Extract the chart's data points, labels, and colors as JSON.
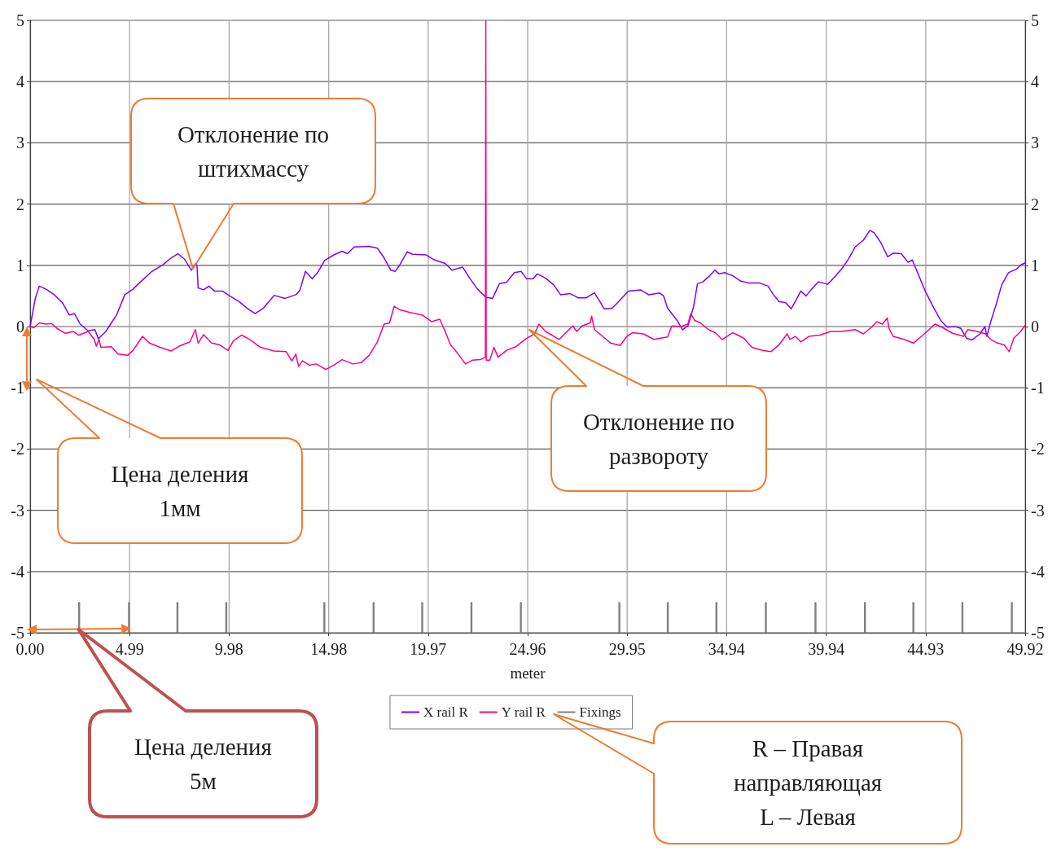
{
  "chart_data": {
    "type": "line",
    "xlabel": "meter",
    "xlim": [
      0,
      49.92
    ],
    "xticks": [
      {
        "value": 0,
        "label": "0.00"
      },
      4.99,
      9.98,
      14.98,
      19.97,
      24.96,
      29.95,
      34.94,
      39.94,
      44.93,
      49.92
    ],
    "ylim": [
      -5,
      5
    ],
    "yticks": [
      -5,
      -4,
      -3,
      -2,
      -1,
      0,
      1,
      2,
      3,
      4,
      5
    ],
    "y2lim": [
      -5,
      5
    ],
    "y2ticks": [
      -5,
      -4,
      -3,
      -2,
      -1,
      0,
      1,
      2,
      3,
      4,
      5
    ],
    "grid": true,
    "legend": "bottom",
    "marker": "none",
    "line_style": "solid",
    "series": [
      {
        "name": "X rail R",
        "color": "#8000ff",
        "x": [
          0,
          0.26,
          0.46,
          0.8,
          1.21,
          1.62,
          1.96,
          2.23,
          2.51,
          2.91,
          3.25,
          3.42,
          3.8,
          4.34,
          4.75,
          5.16,
          5.57,
          6.11,
          6.66,
          7.07,
          7.41,
          7.75,
          8.09,
          8.3,
          8.37,
          8.43,
          8.7,
          8.97,
          9.25,
          9.65,
          10.06,
          10.47,
          10.88,
          11.29,
          11.7,
          12.24,
          12.79,
          13.33,
          13.53,
          13.81,
          14.15,
          14.42,
          14.77,
          15.24,
          15.65,
          15.92,
          16.26,
          17.01,
          17.42,
          17.76,
          18.1,
          18.31,
          18.51,
          18.91,
          19.19,
          19.87,
          20.27,
          20.82,
          21.16,
          21.7,
          22.05,
          22.45,
          22.86,
          23.2,
          23.54,
          23.89,
          24.29,
          24.63,
          24.91,
          25.24,
          25.45,
          25.86,
          26.27,
          26.61,
          27.08,
          27.49,
          27.9,
          28.31,
          28.58,
          28.79,
          29.19,
          29.53,
          30.01,
          30.62,
          31.03,
          31.57,
          31.78,
          31.98,
          32.46,
          32.73,
          33.0,
          33.28,
          33.48,
          33.75,
          34.09,
          34.36,
          34.57,
          34.84,
          35.25,
          35.66,
          36.07,
          36.61,
          37.02,
          37.29,
          37.57,
          37.91,
          38.18,
          38.39,
          38.66,
          38.93,
          39.2,
          39.55,
          40.02,
          40.36,
          40.71,
          41.05,
          41.39,
          41.8,
          42.13,
          42.34,
          42.68,
          43.02,
          43.29,
          43.7,
          44.04,
          44.25,
          44.52,
          44.92,
          45.34,
          45.68,
          46.01,
          46.42,
          46.69,
          46.98,
          47.24,
          47.65,
          47.9,
          48.0,
          48.19,
          48.47,
          48.74,
          49.08,
          49.49,
          49.72,
          49.92
        ],
        "values": [
          0,
          0.46,
          0.66,
          0.61,
          0.52,
          0.39,
          0.19,
          0.21,
          0.04,
          -0.07,
          -0.05,
          -0.2,
          -0.08,
          0.19,
          0.52,
          0.61,
          0.74,
          0.9,
          1.01,
          1.12,
          1.19,
          1.1,
          0.92,
          1.03,
          1.0,
          0.63,
          0.6,
          0.66,
          0.58,
          0.58,
          0.49,
          0.41,
          0.3,
          0.21,
          0.3,
          0.51,
          0.46,
          0.52,
          0.59,
          0.9,
          0.78,
          0.88,
          1.08,
          1.17,
          1.23,
          1.19,
          1.3,
          1.31,
          1.28,
          1.12,
          0.92,
          0.9,
          0.99,
          1.22,
          1.18,
          1.17,
          1.09,
          1.03,
          0.92,
          0.97,
          0.79,
          0.61,
          0.48,
          0.46,
          0.7,
          0.72,
          0.88,
          0.9,
          0.78,
          0.78,
          0.86,
          0.79,
          0.68,
          0.52,
          0.54,
          0.47,
          0.47,
          0.55,
          0.41,
          0.29,
          0.3,
          0.41,
          0.58,
          0.6,
          0.52,
          0.55,
          0.5,
          0.3,
          0.1,
          -0.05,
          0.01,
          0.32,
          0.7,
          0.73,
          0.83,
          0.92,
          0.86,
          0.88,
          0.83,
          0.74,
          0.71,
          0.71,
          0.66,
          0.52,
          0.41,
          0.39,
          0.29,
          0.41,
          0.58,
          0.5,
          0.61,
          0.73,
          0.69,
          0.81,
          0.94,
          1.1,
          1.3,
          1.41,
          1.57,
          1.53,
          1.37,
          1.14,
          1.2,
          1.19,
          1.05,
          1.09,
          0.88,
          0.57,
          0.3,
          0.1,
          -0.01,
          0.0,
          -0.03,
          -0.19,
          -0.22,
          -0.12,
          0.0,
          -0.16,
          0.08,
          0.37,
          0.68,
          0.88,
          0.94,
          1.01,
          1.04
        ]
      },
      {
        "name": "Y rail R",
        "color": "#ff0080",
        "x": [
          0,
          0.19,
          0.46,
          0.8,
          1.08,
          1.35,
          1.76,
          2.17,
          2.44,
          2.91,
          3.22,
          3.32,
          3.46,
          3.55,
          4.07,
          4.41,
          4.89,
          5.16,
          5.64,
          5.98,
          6.52,
          7.07,
          7.48,
          8.02,
          8.29,
          8.43,
          8.7,
          9.11,
          9.51,
          9.93,
          10.2,
          10.61,
          11.02,
          11.56,
          12.24,
          12.85,
          13.13,
          13.33,
          13.47,
          13.67,
          14.01,
          14.35,
          14.83,
          15.24,
          15.65,
          16.19,
          16.61,
          17.01,
          17.42,
          17.76,
          18.03,
          18.26,
          18.51,
          19.05,
          19.66,
          20.14,
          20.55,
          20.82,
          21.09,
          21.43,
          21.84,
          22.18,
          22.59,
          22.84,
          22.86,
          22.88,
          23.06,
          23.27,
          23.47,
          23.89,
          24.36,
          24.91,
          25.31,
          25.52,
          25.86,
          26.54,
          26.88,
          27.22,
          27.42,
          27.69,
          28.1,
          28.17,
          28.31,
          28.72,
          29.12,
          29.6,
          29.94,
          30.21,
          30.76,
          31.3,
          31.98,
          32.19,
          32.66,
          33.0,
          33.14,
          33.34,
          33.62,
          34.03,
          34.37,
          34.71,
          35.25,
          35.8,
          36.21,
          36.75,
          37.16,
          37.57,
          37.98,
          38.12,
          38.39,
          38.66,
          39.07,
          39.62,
          40.16,
          40.71,
          41.39,
          41.8,
          42.21,
          42.48,
          42.75,
          43.0,
          43.09,
          43.29,
          43.84,
          44.31,
          44.79,
          45.4,
          45.74,
          46.28,
          46.83,
          47.04,
          47.51,
          47.92,
          48.19,
          48.53,
          48.87,
          49.12,
          49.35,
          49.69,
          49.92
        ],
        "values": [
          0,
          -0.02,
          0.06,
          0.04,
          0.05,
          -0.03,
          -0.11,
          -0.08,
          -0.14,
          -0.08,
          -0.21,
          -0.32,
          -0.21,
          -0.34,
          -0.33,
          -0.45,
          -0.47,
          -0.39,
          -0.16,
          -0.27,
          -0.34,
          -0.4,
          -0.32,
          -0.25,
          -0.05,
          -0.27,
          -0.13,
          -0.27,
          -0.3,
          -0.39,
          -0.23,
          -0.14,
          -0.21,
          -0.34,
          -0.4,
          -0.41,
          -0.56,
          -0.45,
          -0.65,
          -0.56,
          -0.63,
          -0.61,
          -0.7,
          -0.63,
          -0.54,
          -0.61,
          -0.59,
          -0.47,
          -0.25,
          0.04,
          0.06,
          0.33,
          0.28,
          0.23,
          0.19,
          0.08,
          0.12,
          -0.08,
          -0.3,
          -0.43,
          -0.61,
          -0.55,
          -0.54,
          -0.5,
          5,
          -0.55,
          -0.55,
          -0.34,
          -0.5,
          -0.39,
          -0.33,
          -0.19,
          -0.12,
          0.04,
          -0.08,
          -0.21,
          -0.1,
          0.01,
          -0.08,
          0.01,
          0.06,
          0.17,
          -0.05,
          -0.16,
          -0.27,
          -0.31,
          -0.16,
          -0.1,
          -0.12,
          -0.21,
          -0.17,
          0.01,
          0.0,
          0.04,
          0.21,
          0.1,
          0.06,
          -0.05,
          -0.1,
          -0.21,
          -0.1,
          -0.19,
          -0.34,
          -0.39,
          -0.41,
          -0.3,
          -0.12,
          -0.21,
          -0.16,
          -0.25,
          -0.16,
          -0.14,
          -0.08,
          -0.08,
          -0.05,
          -0.12,
          -0.01,
          0.08,
          0.04,
          0.14,
          -0.03,
          -0.16,
          -0.21,
          -0.27,
          -0.14,
          0.04,
          -0.01,
          -0.11,
          -0.16,
          -0.05,
          -0.08,
          -0.12,
          -0.21,
          -0.27,
          -0.3,
          -0.41,
          -0.19,
          -0.08,
          0.02
        ]
      },
      {
        "name": "Fixings",
        "type": "bar",
        "color": "#808080",
        "x": [
          2.46,
          4.96,
          7.39,
          9.84,
          14.76,
          17.23,
          19.67,
          22.14,
          24.62,
          29.56,
          31.99,
          34.43,
          36.91,
          39.4,
          41.88,
          44.31,
          46.77,
          49.25
        ],
        "base": [
          -5,
          -5,
          -5,
          -5,
          -5,
          -5,
          -5,
          -5,
          -5,
          -5,
          -5,
          -5,
          -5,
          -5,
          -5,
          -5,
          -5,
          -5
        ],
        "values": [
          0.5,
          0.5,
          0.5,
          0.5,
          0.5,
          0.5,
          0.5,
          0.5,
          0.5,
          0.5,
          0.5,
          0.5,
          0.5,
          0.5,
          0.5,
          0.5,
          0.5,
          0.5
        ]
      }
    ],
    "annotations": [
      "Отклонение по штихмассу",
      "Отклонение по развороту",
      "Цена деления 1мм",
      "Цена деления 5м",
      "R – Правая направляющая\nL – Левая"
    ]
  }
}
